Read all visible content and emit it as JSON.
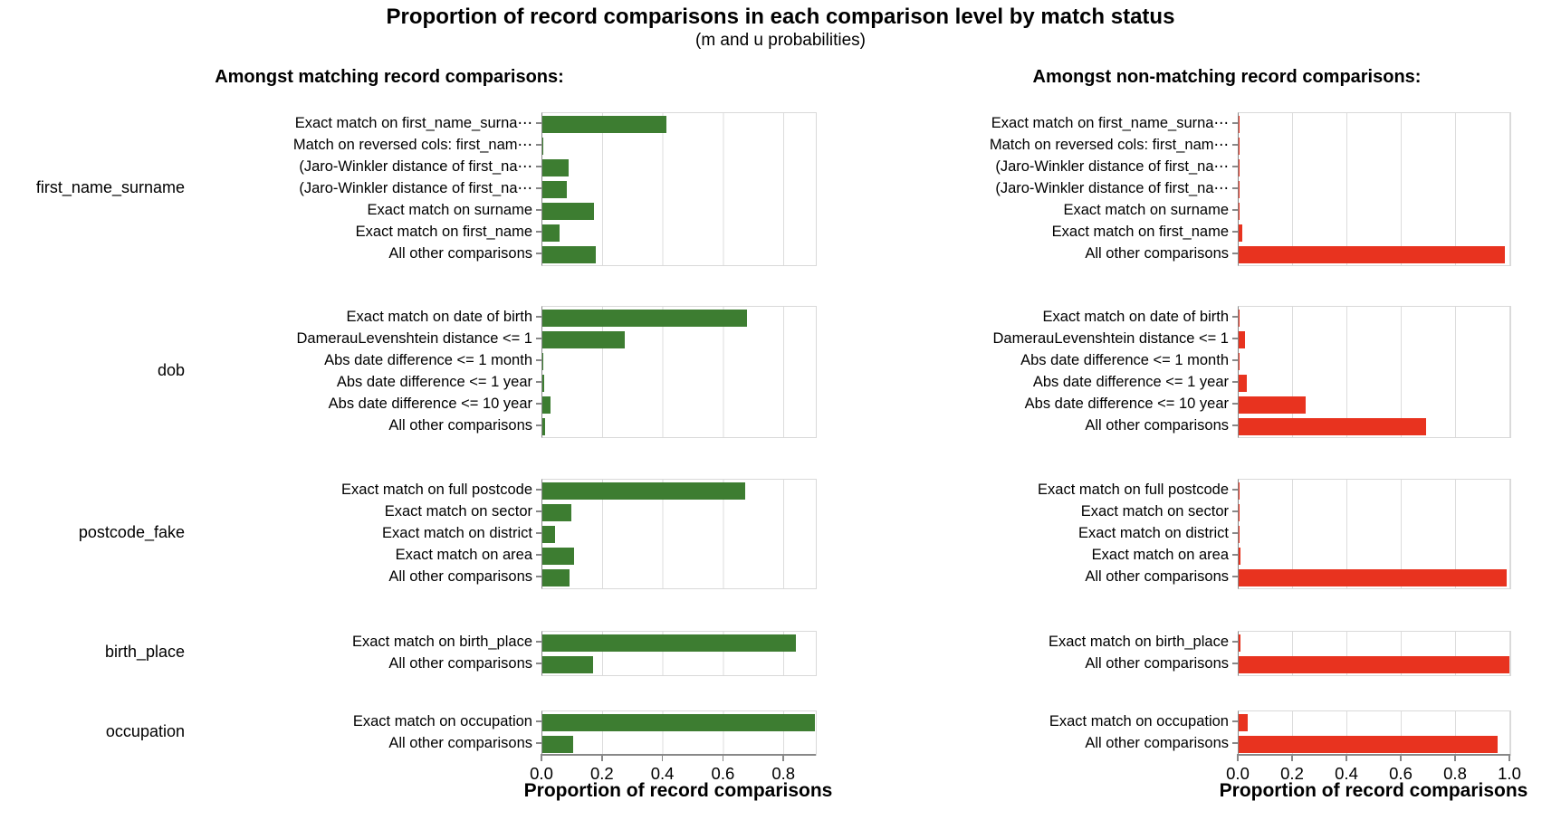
{
  "title": "Proportion of record comparisons in each comparison level by match status",
  "subtitle": "(m and u probabilities)",
  "chart_data": {
    "type": "bar",
    "orientation": "horizontal",
    "axis_title": "Proportion of record comparisons",
    "grid": true,
    "row_groups": [
      "first_name_surname",
      "dob",
      "postcode_fake",
      "birth_place",
      "occupation"
    ],
    "panels": [
      {
        "header": "Amongst matching record comparisons:",
        "match_status": "match (m probabilities)",
        "bar_color": "#3d7d31",
        "x_ticks": [
          0.0,
          0.2,
          0.4,
          0.6,
          0.8
        ],
        "x_max": 0.905,
        "groups": [
          {
            "name": "first_name_surname",
            "rows": [
              {
                "label": "Exact match on first_name_surna⋯",
                "value": 0.41
              },
              {
                "label": "Match on reversed cols: first_nam⋯",
                "value": 0.002
              },
              {
                "label": "(Jaro-Winkler distance of first_na⋯",
                "value": 0.086
              },
              {
                "label": "(Jaro-Winkler distance of first_na⋯",
                "value": 0.08
              },
              {
                "label": "Exact match on surname",
                "value": 0.17
              },
              {
                "label": "Exact match on first_name",
                "value": 0.056
              },
              {
                "label": "All other comparisons",
                "value": 0.177
              }
            ]
          },
          {
            "name": "dob",
            "rows": [
              {
                "label": "Exact match on date of birth",
                "value": 0.677
              },
              {
                "label": "DamerauLevenshtein distance <= 1",
                "value": 0.273
              },
              {
                "label": "Abs date difference <= 1 month",
                "value": 0.003
              },
              {
                "label": "Abs date difference <= 1 year",
                "value": 0.005
              },
              {
                "label": "Abs date difference <= 10 year",
                "value": 0.027
              },
              {
                "label": "All other comparisons",
                "value": 0.008
              }
            ]
          },
          {
            "name": "postcode_fake",
            "rows": [
              {
                "label": "Exact match on full postcode",
                "value": 0.672
              },
              {
                "label": "Exact match on sector",
                "value": 0.095
              },
              {
                "label": "Exact match on district",
                "value": 0.043
              },
              {
                "label": "Exact match on area",
                "value": 0.104
              },
              {
                "label": "All other comparisons",
                "value": 0.089
              }
            ]
          },
          {
            "name": "birth_place",
            "rows": [
              {
                "label": "Exact match on birth_place",
                "value": 0.838
              },
              {
                "label": "All other comparisons",
                "value": 0.167
              }
            ]
          },
          {
            "name": "occupation",
            "rows": [
              {
                "label": "Exact match on occupation",
                "value": 0.902
              },
              {
                "label": "All other comparisons",
                "value": 0.101
              }
            ]
          }
        ]
      },
      {
        "header": "Amongst non-matching record comparisons:",
        "match_status": "non-match (u probabilities)",
        "bar_color": "#e8331f",
        "x_ticks": [
          0.0,
          0.2,
          0.4,
          0.6,
          0.8,
          1.0
        ],
        "x_max": 1.0,
        "groups": [
          {
            "name": "first_name_surname",
            "rows": [
              {
                "label": "Exact match on first_name_surna⋯",
                "value": 0.002
              },
              {
                "label": "Match on reversed cols: first_nam⋯",
                "value": 0.002
              },
              {
                "label": "(Jaro-Winkler distance of first_na⋯",
                "value": 0.002
              },
              {
                "label": "(Jaro-Winkler distance of first_na⋯",
                "value": 0.002
              },
              {
                "label": "Exact match on surname",
                "value": 0.003
              },
              {
                "label": "Exact match on first_name",
                "value": 0.013
              },
              {
                "label": "All other comparisons",
                "value": 0.98
              }
            ]
          },
          {
            "name": "dob",
            "rows": [
              {
                "label": "Exact match on date of birth",
                "value": 0.004
              },
              {
                "label": "DamerauLevenshtein distance <= 1",
                "value": 0.022
              },
              {
                "label": "Abs date difference <= 1 month",
                "value": 0.004
              },
              {
                "label": "Abs date difference <= 1 year",
                "value": 0.03
              },
              {
                "label": "Abs date difference <= 10 year",
                "value": 0.246
              },
              {
                "label": "All other comparisons",
                "value": 0.69
              }
            ]
          },
          {
            "name": "postcode_fake",
            "rows": [
              {
                "label": "Exact match on full postcode",
                "value": 0.002
              },
              {
                "label": "Exact match on sector",
                "value": 0.002
              },
              {
                "label": "Exact match on district",
                "value": 0.003
              },
              {
                "label": "Exact match on area",
                "value": 0.007
              },
              {
                "label": "All other comparisons",
                "value": 0.985
              }
            ]
          },
          {
            "name": "birth_place",
            "rows": [
              {
                "label": "Exact match on birth_place",
                "value": 0.005
              },
              {
                "label": "All other comparisons",
                "value": 0.995
              }
            ]
          },
          {
            "name": "occupation",
            "rows": [
              {
                "label": "Exact match on occupation",
                "value": 0.032
              },
              {
                "label": "All other comparisons",
                "value": 0.954
              }
            ]
          }
        ]
      }
    ]
  }
}
